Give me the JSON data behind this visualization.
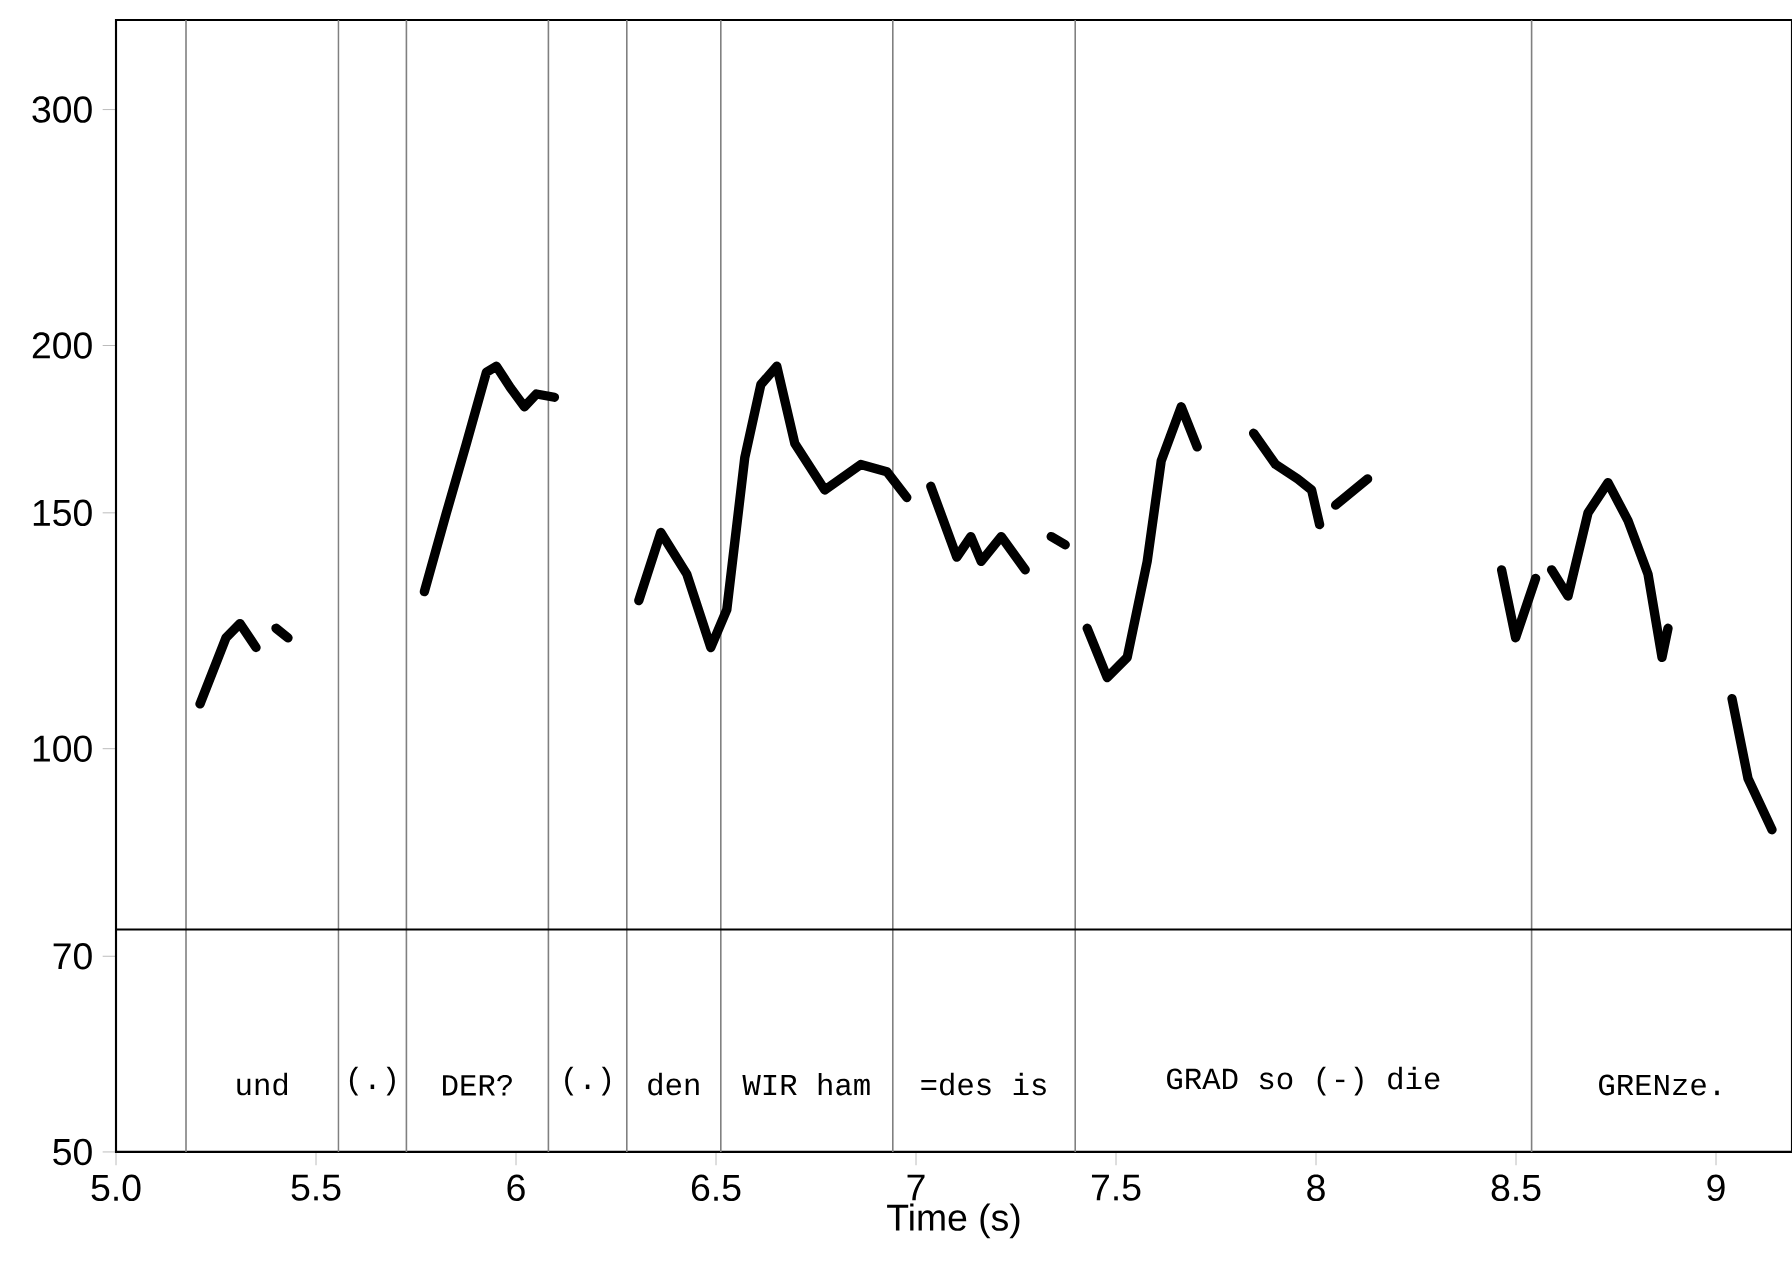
{
  "chart_data": {
    "type": "line",
    "xlabel": "Time (s)",
    "log": "y",
    "marker": "none",
    "line_style": "solid",
    "xlim": [
      5,
      9.19
    ],
    "ylim": [
      50,
      350
    ],
    "xticks": [
      {
        "value": 5,
        "label": "5.0"
      },
      5.5,
      6,
      6.5,
      7,
      7.5,
      8,
      8.5,
      9
    ],
    "yticks": [
      50,
      70,
      100,
      150,
      200,
      300
    ],
    "x": [
      5.21,
      5.275,
      5.31,
      5.35,
      5.375,
      5.4,
      5.43,
      5.6,
      5.771,
      5.826,
      5.876,
      5.926,
      5.951,
      5.986,
      6.021,
      6.051,
      6.096,
      6.2,
      6.307,
      6.362,
      6.427,
      6.487,
      6.527,
      6.572,
      6.612,
      6.652,
      6.697,
      6.772,
      6.862,
      6.927,
      6.977,
      7.007,
      7.037,
      7.102,
      7.137,
      7.163,
      7.213,
      7.273,
      7.3,
      7.338,
      7.373,
      7.4,
      7.428,
      7.478,
      7.528,
      7.578,
      7.613,
      7.663,
      7.703,
      7.77,
      7.844,
      7.899,
      7.954,
      7.989,
      8.009,
      8.029,
      8.049,
      8.129,
      8.3,
      8.464,
      8.499,
      8.549,
      8.57,
      8.589,
      8.63,
      8.68,
      8.73,
      8.78,
      8.83,
      8.865,
      8.88,
      8.96,
      9.04,
      9.08,
      9.14
    ],
    "series": [
      {
        "color": "#000000",
        "values": [
          108,
          121,
          124,
          119,
          null,
          123,
          121,
          null,
          131,
          150,
          169,
          191,
          193,
          186,
          180,
          184,
          183,
          null,
          129,
          145,
          135,
          119,
          127,
          165,
          187,
          193,
          169,
          156,
          163,
          161,
          154,
          null,
          157,
          139,
          144,
          138,
          144,
          136,
          null,
          144,
          142,
          null,
          123,
          113,
          117,
          138,
          164,
          180,
          168,
          null,
          172,
          163,
          159,
          156,
          147,
          null,
          152,
          159,
          null,
          136,
          121,
          134,
          null,
          136,
          130,
          150,
          158,
          148,
          135,
          117,
          123,
          null,
          109,
          95,
          87
        ]
      }
    ],
    "ref_lines": [
      {
        "axis": "x",
        "value": 5.175,
        "color": "#808080"
      },
      {
        "axis": "x",
        "value": 5.556,
        "color": "#808080"
      },
      {
        "axis": "x",
        "value": 5.726,
        "color": "#808080"
      },
      {
        "axis": "x",
        "value": 6.081,
        "color": "#808080"
      },
      {
        "axis": "x",
        "value": 6.277,
        "color": "#808080"
      },
      {
        "axis": "x",
        "value": 6.512,
        "color": "#808080"
      },
      {
        "axis": "x",
        "value": 6.942,
        "color": "#808080"
      },
      {
        "axis": "x",
        "value": 7.398,
        "color": "#808080"
      },
      {
        "axis": "x",
        "value": 8.539,
        "color": "#808080"
      },
      {
        "axis": "y",
        "value": 73.3,
        "color": "#000000"
      }
    ],
    "annotations": [
      "und",
      "(.)",
      "DER?",
      "(.)",
      "den",
      "WIR ham",
      "=des is",
      "GRAD so (-) die",
      "GRENze."
    ]
  }
}
